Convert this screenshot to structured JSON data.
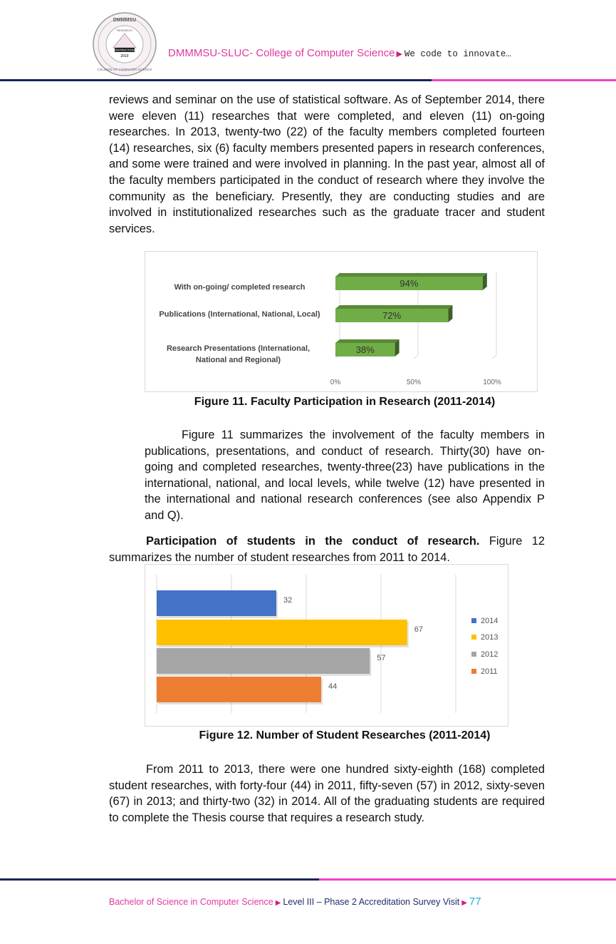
{
  "header": {
    "logo_text": [
      "DMMMSU",
      "RESEARCH",
      "INSTRUCTION",
      "2010",
      "COLLEGE OF COMPUTER SCIENCE"
    ],
    "title": "DMMMSU-SLUC- College of Computer Science",
    "tagline": "We code to innovate…"
  },
  "paragraphs": {
    "p1": "reviews and seminar on the use of statistical software. As of September 2014, there were eleven (11) researches that were completed, and eleven (11) on-going researches. In 2013, twenty-two (22) of the faculty members completed fourteen (14) researches, six (6) faculty members presented papers in research conferences, and some were trained and were involved in planning. In the past year, almost all of the faculty members participated in the conduct of research where they involve the community as the beneficiary. Presently, they are conducting studies and are involved in institutionalized researches such as the graduate tracer and student services.",
    "p2": "Figure 11 summarizes the involvement of the faculty members in publications, presentations, and conduct of research. Thirty(30) have on-going and completed researches, twenty-three(23) have publications in the international, national, and local levels, while twelve (12) have presented in the international and national research conferences (see also Appendix P and Q).",
    "p3_bold": "Participation of students in the conduct of research.",
    "p3_rest": " Figure 12 summarizes the number of student researches from 2011 to 2014.",
    "p4": "From 2011 to 2013, there were one hundred sixty-eighth (168) completed student researches, with forty-four (44) in 2011, fifty-seven (57) in 2012, sixty-seven (67) in 2013; and thirty-two (32) in 2014. All of the graduating students are required to complete the Thesis course that requires a research study."
  },
  "captions": {
    "fig11": "Figure 11. Faculty Participation in Research (2011-2014)",
    "fig12": "Figure 12. Number of Student Researches (2011-2014)"
  },
  "chart_data": [
    {
      "type": "bar",
      "orientation": "horizontal",
      "categories": [
        "With on-going/ completed research",
        "Publications (International, National, Local)",
        "Research Presentations (International, National and Regional)"
      ],
      "values": [
        94,
        72,
        38
      ],
      "data_labels": [
        "94%",
        "72%",
        "38%"
      ],
      "xlim": [
        0,
        100
      ],
      "x_ticks": [
        "0%",
        "50%",
        "100%"
      ],
      "color": "#70ad47",
      "grid": true
    },
    {
      "type": "bar",
      "orientation": "horizontal",
      "series": [
        {
          "name": "2014",
          "values": [
            32
          ],
          "color": "#4472c4"
        },
        {
          "name": "2013",
          "values": [
            67
          ],
          "color": "#ffc000"
        },
        {
          "name": "2012",
          "values": [
            57
          ],
          "color": "#a5a5a5"
        },
        {
          "name": "2011",
          "values": [
            44
          ],
          "color": "#ed7d31"
        }
      ],
      "xlim": [
        0,
        80
      ],
      "grid": true,
      "legend": "right"
    }
  ],
  "footer": {
    "left": "Bachelor of Science in Computer Science",
    "middle": "Level III – Phase 2 Accreditation Survey Visit",
    "page": "77"
  }
}
